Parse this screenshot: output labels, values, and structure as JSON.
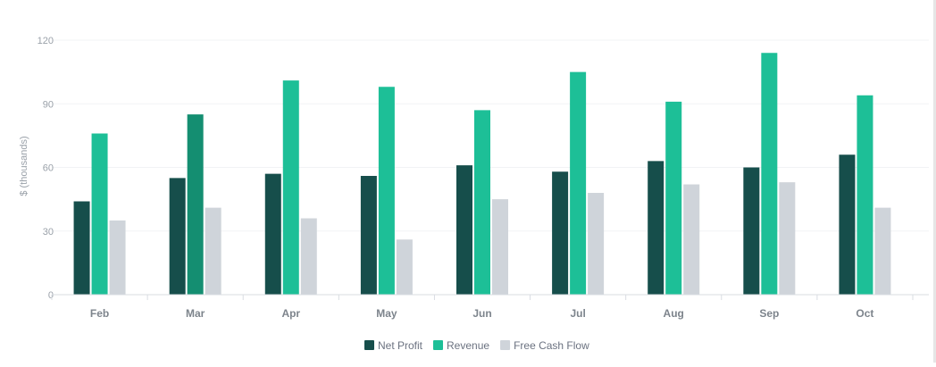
{
  "chart_data": {
    "type": "bar",
    "title": "",
    "xlabel": "",
    "ylabel": "$ (thousands)",
    "ylim": [
      0,
      120
    ],
    "yticks": [
      0,
      30,
      60,
      90,
      120
    ],
    "grid": true,
    "legend_position": "bottom",
    "categories": [
      "Feb",
      "Mar",
      "Apr",
      "May",
      "Jun",
      "Jul",
      "Aug",
      "Sep",
      "Oct"
    ],
    "series": [
      {
        "name": "Net Profit",
        "color": "#164e4b",
        "values": [
          44,
          55,
          57,
          56,
          61,
          58,
          63,
          60,
          66
        ]
      },
      {
        "name": "Revenue",
        "color": "#1dbf97",
        "values": [
          76,
          85,
          101,
          98,
          87,
          105,
          91,
          114,
          94
        ]
      },
      {
        "name": "Free Cash Flow",
        "color": "#cfd4da",
        "values": [
          35,
          41,
          36,
          26,
          45,
          48,
          52,
          53,
          41
        ]
      }
    ],
    "highlight": {
      "series": 1,
      "category": 1,
      "color": "#148e71"
    }
  }
}
